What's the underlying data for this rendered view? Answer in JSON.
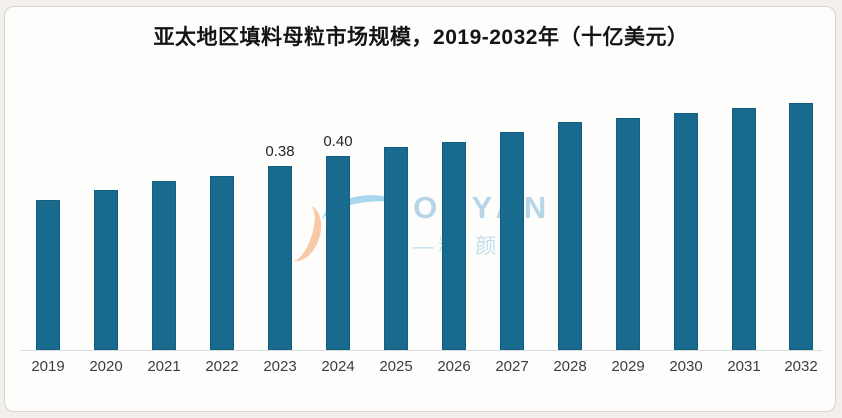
{
  "page": {
    "background_color": "#f2efec",
    "card_background": "#fdfdfc",
    "card_border_color": "#d8d5d2"
  },
  "chart_data": {
    "type": "bar",
    "title": "亚太地区填料母粒市场规模，2019-2032年（十亿美元）",
    "xlabel": "",
    "ylabel": "",
    "categories": [
      "2019",
      "2020",
      "2021",
      "2022",
      "2023",
      "2024",
      "2025",
      "2026",
      "2027",
      "2028",
      "2029",
      "2030",
      "2031",
      "2032"
    ],
    "values": [
      0.31,
      0.33,
      0.35,
      0.36,
      0.38,
      0.4,
      0.42,
      0.43,
      0.45,
      0.47,
      0.48,
      0.49,
      0.5,
      0.51
    ],
    "data_labels": {
      "2023": "0.38",
      "2024": "0.40"
    },
    "ylim": [
      0,
      0.55
    ],
    "grid": false,
    "legend": "none",
    "bar_color": "#186a8e",
    "axis_line_color": "#dcdcdc"
  },
  "watermark": {
    "text_latin": "GONYAN",
    "text_cjk": "—精 颜—"
  }
}
